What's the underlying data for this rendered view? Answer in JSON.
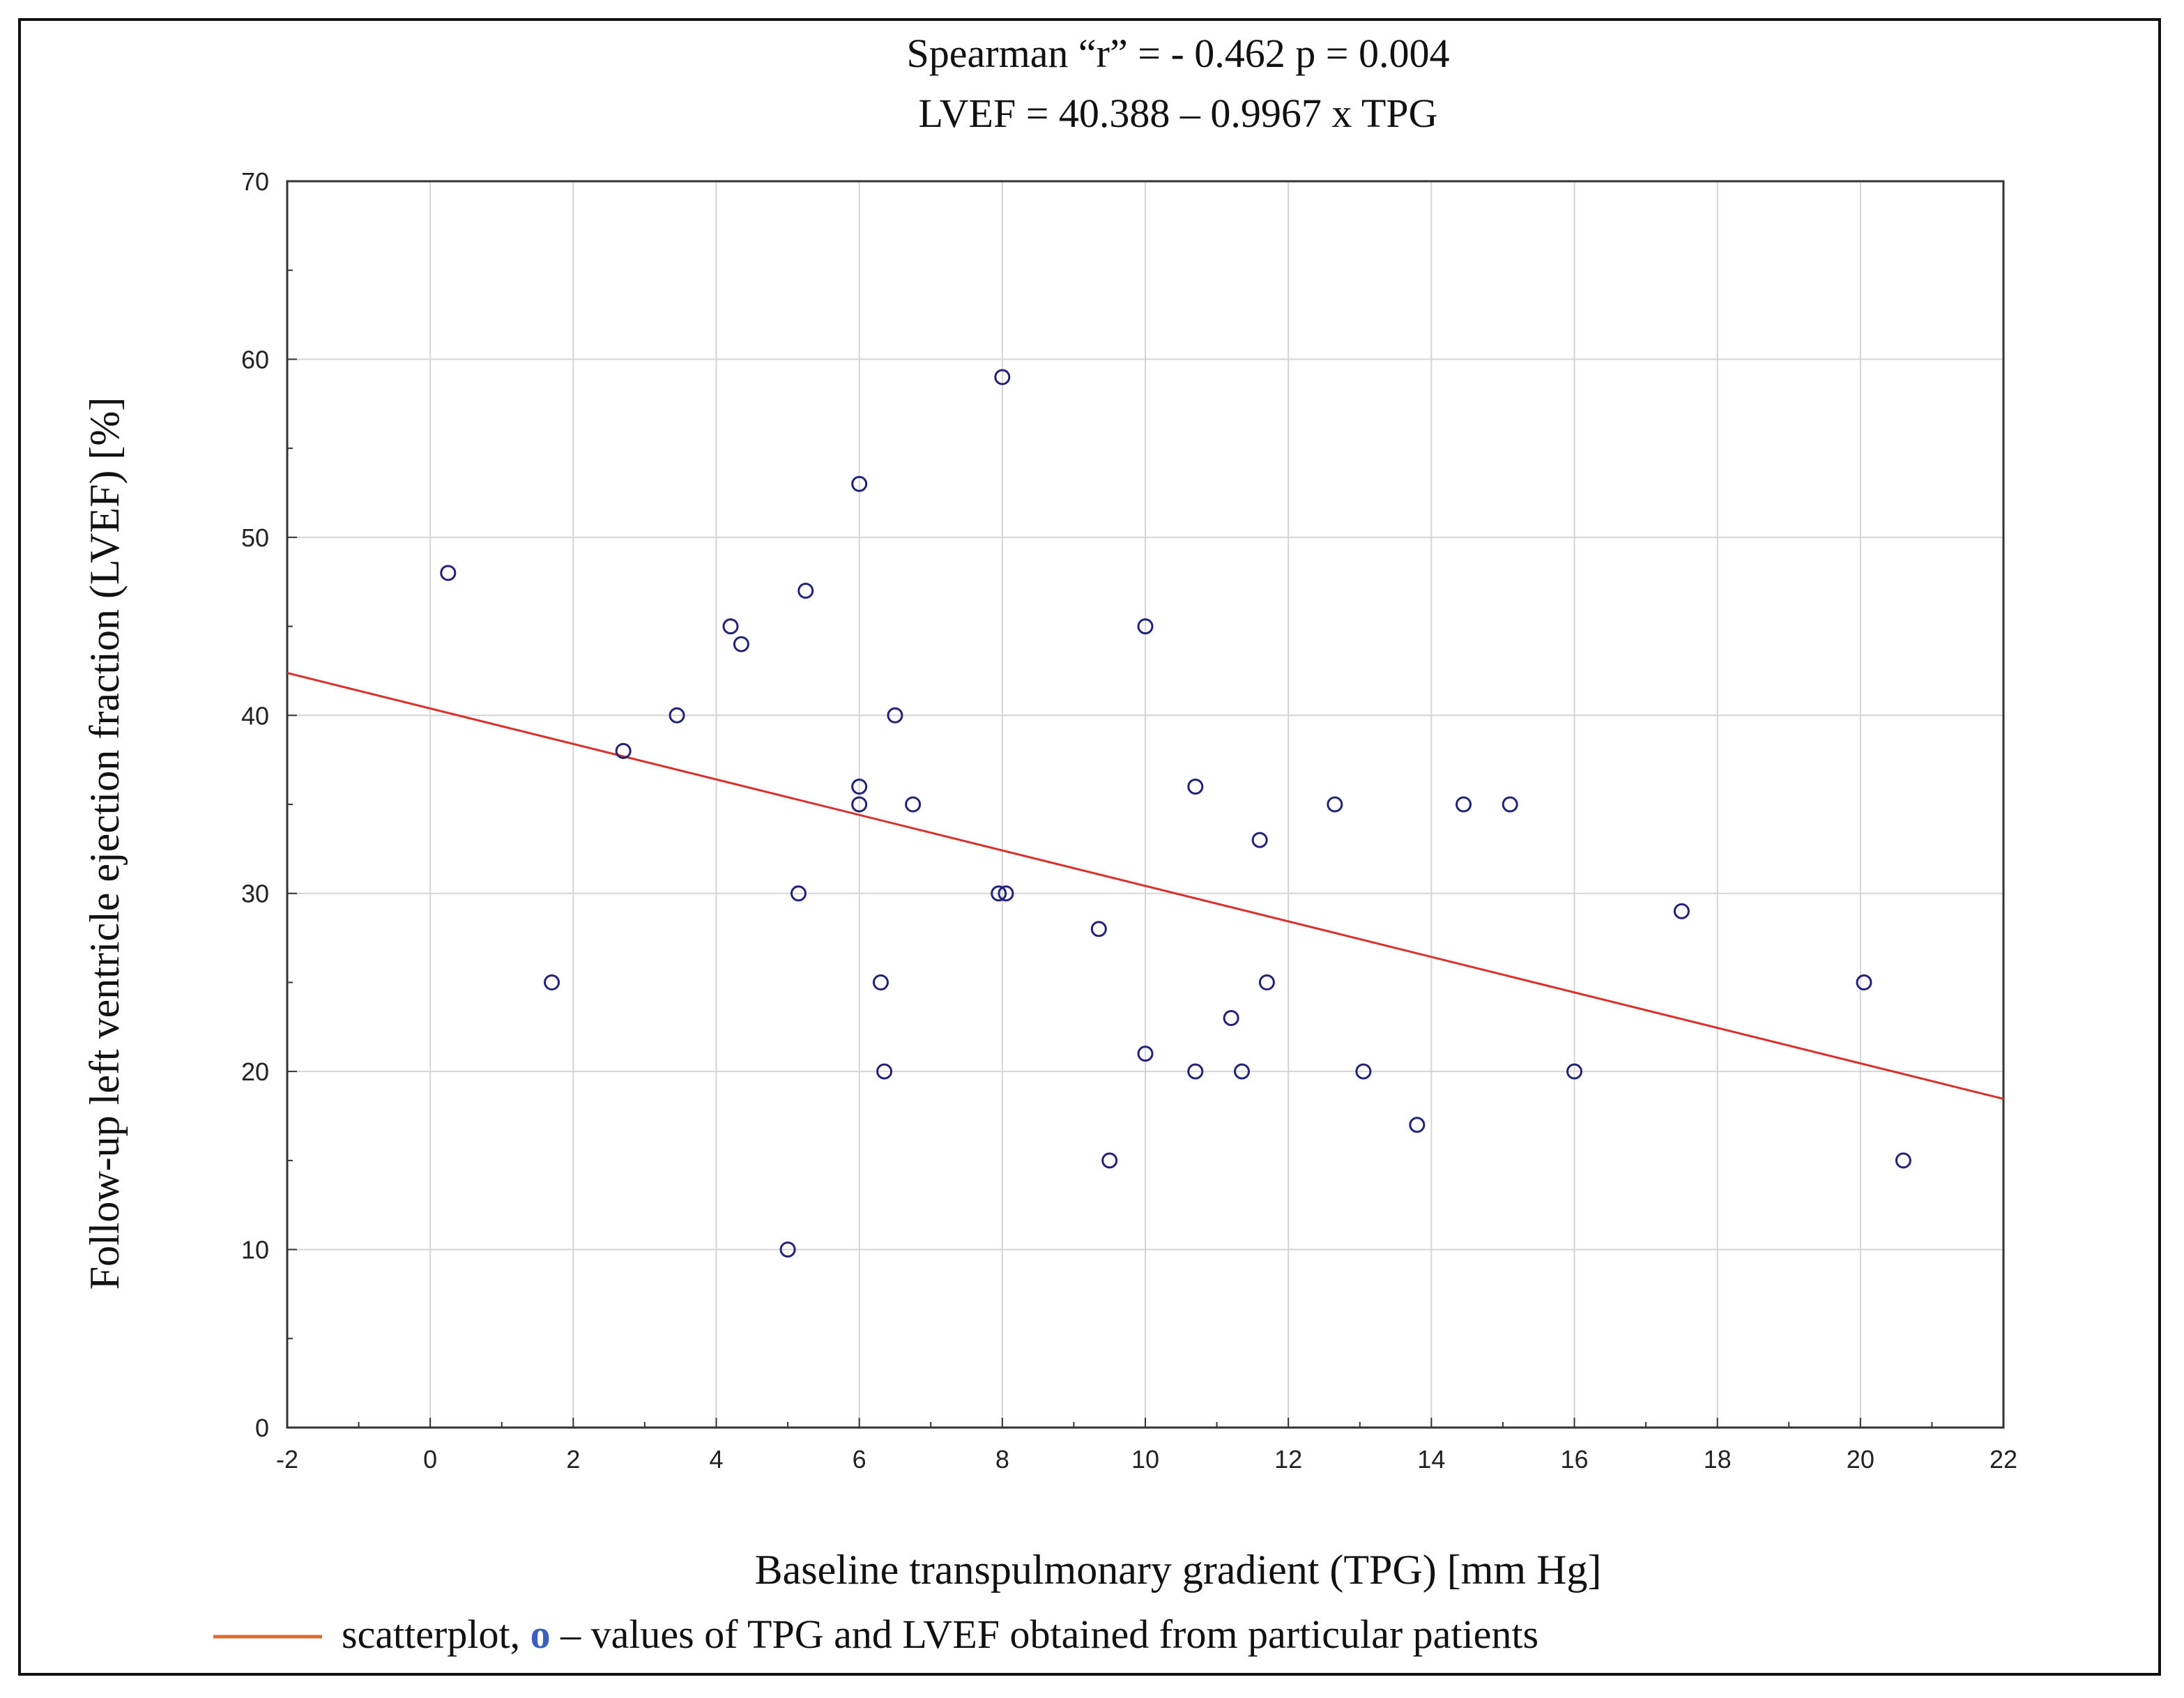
{
  "chart_data": {
    "type": "scatter",
    "title_line1": "Spearman “r” = -  0.462 p = 0.004",
    "title_line2": "LVEF = 40.388 – 0.9967 x TPG",
    "xlabel": "Baseline transpulmonary gradient (TPG) [mm Hg]",
    "ylabel": "Follow-up left ventricle ejection fraction (LVEF) [%]",
    "xlim": [
      -2,
      22
    ],
    "ylim": [
      0,
      70
    ],
    "xticks": [
      -2,
      0,
      2,
      4,
      6,
      8,
      10,
      12,
      14,
      16,
      18,
      20,
      22
    ],
    "yticks": [
      0,
      10,
      20,
      30,
      40,
      50,
      60,
      70
    ],
    "grid": true,
    "regression": {
      "intercept": 40.388,
      "slope": -0.9967
    },
    "points": [
      {
        "x": 0.25,
        "y": 48
      },
      {
        "x": 1.7,
        "y": 25
      },
      {
        "x": 2.7,
        "y": 38
      },
      {
        "x": 3.45,
        "y": 40
      },
      {
        "x": 4.2,
        "y": 45
      },
      {
        "x": 4.35,
        "y": 44
      },
      {
        "x": 5.0,
        "y": 10
      },
      {
        "x": 5.15,
        "y": 30
      },
      {
        "x": 5.25,
        "y": 47
      },
      {
        "x": 6.0,
        "y": 53
      },
      {
        "x": 6.0,
        "y": 36
      },
      {
        "x": 6.0,
        "y": 35
      },
      {
        "x": 6.3,
        "y": 25
      },
      {
        "x": 6.35,
        "y": 20
      },
      {
        "x": 6.5,
        "y": 40
      },
      {
        "x": 6.75,
        "y": 35
      },
      {
        "x": 7.95,
        "y": 30
      },
      {
        "x": 8.05,
        "y": 30
      },
      {
        "x": 8.0,
        "y": 59
      },
      {
        "x": 9.35,
        "y": 28
      },
      {
        "x": 9.5,
        "y": 15
      },
      {
        "x": 10.0,
        "y": 45
      },
      {
        "x": 10.0,
        "y": 21
      },
      {
        "x": 10.7,
        "y": 36
      },
      {
        "x": 10.7,
        "y": 20
      },
      {
        "x": 11.2,
        "y": 23
      },
      {
        "x": 11.35,
        "y": 20
      },
      {
        "x": 11.6,
        "y": 33
      },
      {
        "x": 11.7,
        "y": 25
      },
      {
        "x": 12.65,
        "y": 35
      },
      {
        "x": 13.05,
        "y": 20
      },
      {
        "x": 13.8,
        "y": 17
      },
      {
        "x": 14.45,
        "y": 35
      },
      {
        "x": 15.1,
        "y": 35
      },
      {
        "x": 16.0,
        "y": 20
      },
      {
        "x": 17.5,
        "y": 29
      },
      {
        "x": 20.05,
        "y": 25
      },
      {
        "x": 20.6,
        "y": 15
      }
    ],
    "legend": {
      "line_text": "scatterplot, ",
      "marker_text": "o",
      "rest_text": " – values of TPG and LVEF obtained from particular patients"
    },
    "colors": {
      "line": "#d9302c",
      "legend_line": "#e06a2e",
      "marker": "#22227a",
      "legend_marker": "#3a5fbf",
      "grid": "#d4d4d4",
      "axis": "#333333"
    }
  }
}
